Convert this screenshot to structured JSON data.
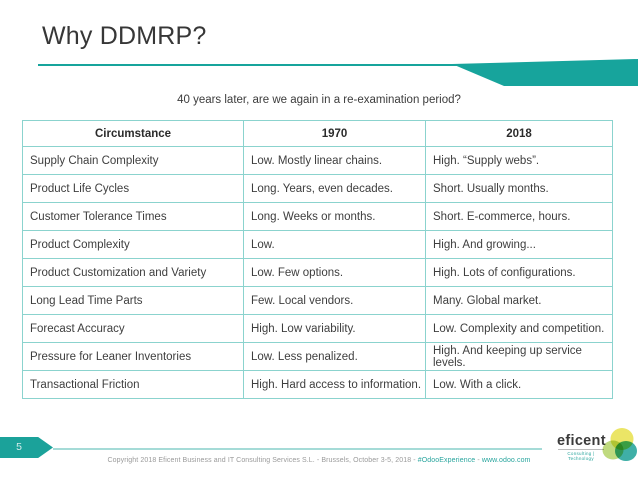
{
  "slide": {
    "title": "Why DDMRP?",
    "subtitle": "40 years later, are we again in a re-examination period?",
    "page_number": "5"
  },
  "table": {
    "headers": [
      "Circumstance",
      "1970",
      "2018"
    ],
    "rows": [
      [
        "Supply Chain Complexity",
        "Low. Mostly linear chains.",
        "High. “Supply webs”."
      ],
      [
        "Product Life Cycles",
        "Long. Years, even decades.",
        "Short. Usually months."
      ],
      [
        "Customer Tolerance Times",
        "Long. Weeks or months.",
        "Short. E-commerce, hours."
      ],
      [
        "Product Complexity",
        "Low.",
        "High. And growing..."
      ],
      [
        "Product Customization and Variety",
        "Low. Few options.",
        "High. Lots of configurations."
      ],
      [
        "Long Lead Time Parts",
        "Few. Local vendors.",
        "Many. Global market."
      ],
      [
        "Forecast Accuracy",
        "High. Low variability.",
        "Low. Complexity and competition."
      ],
      [
        "Pressure for Leaner Inventories",
        "Low. Less penalized.",
        "High. And keeping up service levels."
      ],
      [
        "Transactional Friction",
        "High. Hard access to information.",
        "Low. With a click."
      ]
    ]
  },
  "footer": {
    "copyright_text": "Copyright 2018 Eficent Business and IT Consulting Services S.L.",
    "separator": "-",
    "event_text": "Brussels, October 3-5, 2018",
    "hashtag": "#OdooExperience",
    "website": "www.odoo.com",
    "logo_text": "eficent",
    "logo_tagline": "Consulting | Technology"
  },
  "colors": {
    "accent_teal": "#17a49c",
    "table_border_teal": "#8bd3ce",
    "footer_line_teal": "#a5dbd7",
    "link_teal": "#29a59e",
    "title_gray": "#373737",
    "body_text_gray": "#3e3e3e",
    "copyright_gray": "#9a9a9a",
    "logo_yellow": "#ebe566",
    "logo_green": "#b5d468",
    "logo_teal": "#2aa69d"
  }
}
